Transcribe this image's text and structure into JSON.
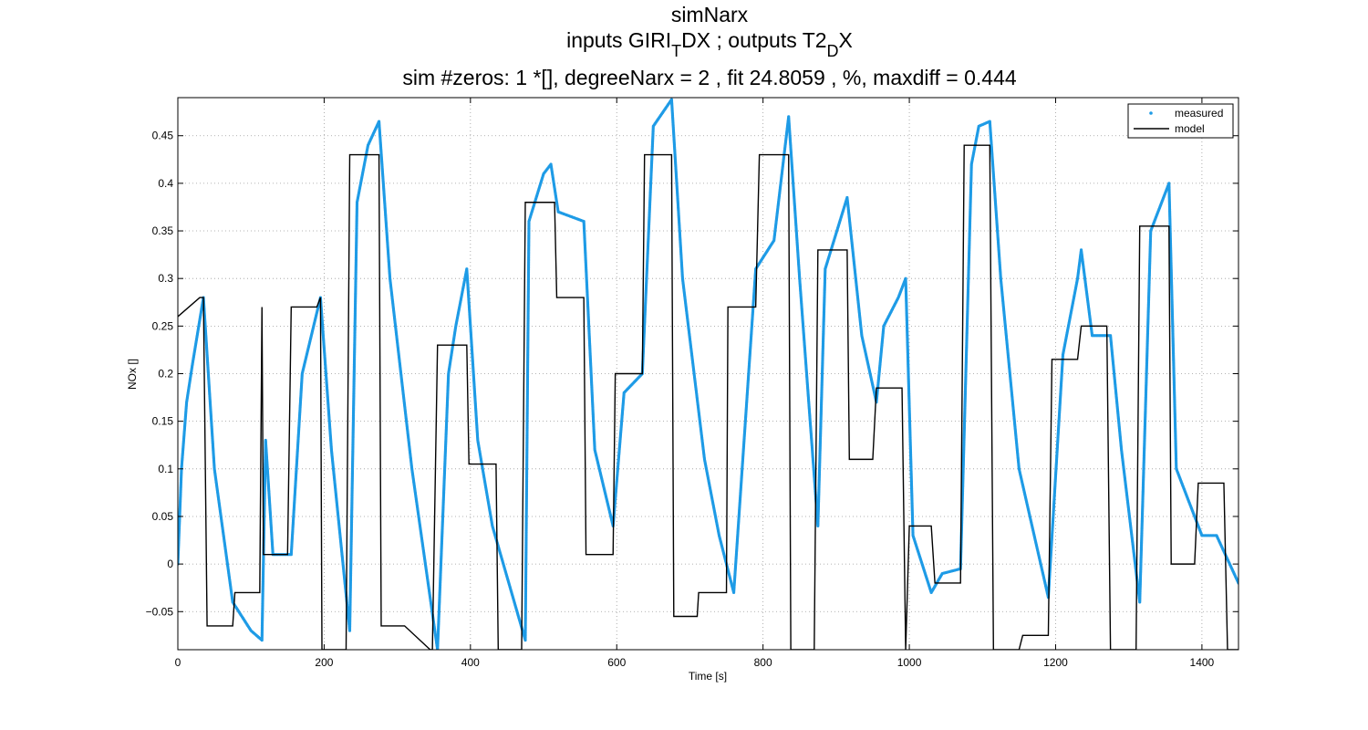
{
  "chart_data": {
    "type": "line",
    "title_lines": [
      "simNarx",
      "inputs GIRI_TDX ; outputs T2_DX",
      "sim #zeros:  1 *[], degreeNarx =  2 , fit  24.8059 , %, maxdiff =  0.444"
    ],
    "title_parts": {
      "line1": "simNarx",
      "line2_a": "inputs GIRI",
      "line2_sub1": "T",
      "line2_b": "DX ; outputs T2",
      "line2_sub2": "D",
      "line2_c": "X",
      "line3": "sim #zeros:  1 *[], degreeNarx =  2 , fit  24.8059 , %, maxdiff =  0.444"
    },
    "xlabel": "Time [s]",
    "ylabel": "NOx  []",
    "xlim": [
      0,
      1450
    ],
    "ylim": [
      -0.09,
      0.49
    ],
    "xticks": [
      "0",
      "200",
      "400",
      "600",
      "800",
      "1000",
      "1200",
      "1400"
    ],
    "xtick_values": [
      0,
      200,
      400,
      600,
      800,
      1000,
      1200,
      1400
    ],
    "yticks": [
      "−0.05",
      "0",
      "0.05",
      "0.1",
      "0.15",
      "0.2",
      "0.25",
      "0.3",
      "0.35",
      "0.4",
      "0.45"
    ],
    "ytick_values": [
      -0.05,
      0,
      0.05,
      0.1,
      0.15,
      0.2,
      0.25,
      0.3,
      0.35,
      0.4,
      0.45
    ],
    "grid": true,
    "legend_position": "top-right",
    "series": [
      {
        "name": "measured",
        "style": "dots",
        "color": "#1e9be6",
        "x": [
          0,
          5,
          12,
          20,
          35,
          50,
          75,
          100,
          115,
          120,
          130,
          155,
          170,
          195,
          210,
          235,
          245,
          260,
          275,
          290,
          320,
          355,
          370,
          380,
          395,
          410,
          430,
          460,
          475,
          480,
          500,
          510,
          520,
          555,
          570,
          595,
          610,
          635,
          650,
          675,
          690,
          720,
          740,
          760,
          790,
          815,
          835,
          850,
          875,
          885,
          905,
          915,
          935,
          955,
          965,
          985,
          995,
          1005,
          1030,
          1045,
          1070,
          1085,
          1095,
          1110,
          1125,
          1150,
          1190,
          1210,
          1230,
          1235,
          1250,
          1275,
          1290,
          1315,
          1330,
          1355,
          1365,
          1400,
          1420,
          1450
        ],
        "y": [
          0.0,
          0.1,
          0.17,
          0.21,
          0.28,
          0.1,
          -0.04,
          -0.07,
          -0.08,
          0.13,
          0.01,
          0.01,
          0.2,
          0.28,
          0.12,
          -0.07,
          0.38,
          0.44,
          0.465,
          0.3,
          0.1,
          -0.09,
          0.2,
          0.25,
          0.31,
          0.13,
          0.04,
          -0.04,
          -0.08,
          0.36,
          0.41,
          0.42,
          0.37,
          0.36,
          0.12,
          0.04,
          0.18,
          0.2,
          0.46,
          0.488,
          0.3,
          0.11,
          0.03,
          -0.03,
          0.31,
          0.34,
          0.47,
          0.3,
          0.04,
          0.31,
          0.36,
          0.385,
          0.24,
          0.17,
          0.25,
          0.28,
          0.3,
          0.03,
          -0.03,
          -0.01,
          -0.005,
          0.42,
          0.46,
          0.465,
          0.3,
          0.1,
          -0.035,
          0.22,
          0.3,
          0.33,
          0.24,
          0.24,
          0.12,
          -0.04,
          0.35,
          0.4,
          0.1,
          0.03,
          0.03,
          -0.02
        ]
      },
      {
        "name": "model",
        "style": "line",
        "color": "#000000",
        "x": [
          0,
          30,
          35,
          40,
          75,
          78,
          112,
          115,
          117,
          120,
          150,
          155,
          190,
          195,
          197,
          230,
          235,
          238,
          275,
          278,
          310,
          345,
          348,
          355,
          358,
          395,
          398,
          435,
          438,
          470,
          475,
          478,
          515,
          518,
          555,
          558,
          595,
          598,
          635,
          638,
          675,
          678,
          710,
          712,
          750,
          752,
          790,
          795,
          830,
          835,
          838,
          870,
          875,
          878,
          915,
          918,
          950,
          955,
          958,
          990,
          995,
          1000,
          1030,
          1035,
          1070,
          1075,
          1080,
          1110,
          1115,
          1150,
          1155,
          1190,
          1195,
          1230,
          1235,
          1240,
          1270,
          1275,
          1278,
          1310,
          1315,
          1318,
          1355,
          1358,
          1390,
          1395,
          1400,
          1430,
          1435,
          1450
        ],
        "y": [
          0.26,
          0.28,
          0.28,
          -0.065,
          -0.065,
          -0.03,
          -0.03,
          0.27,
          0.01,
          0.01,
          0.01,
          0.27,
          0.27,
          0.28,
          -0.09,
          -0.09,
          0.43,
          0.43,
          0.43,
          -0.065,
          -0.065,
          -0.09,
          -0.09,
          0.23,
          0.23,
          0.23,
          0.105,
          0.105,
          -0.09,
          -0.09,
          0.38,
          0.38,
          0.38,
          0.28,
          0.28,
          0.01,
          0.01,
          0.2,
          0.2,
          0.43,
          0.43,
          -0.055,
          -0.055,
          -0.03,
          -0.03,
          0.27,
          0.27,
          0.43,
          0.43,
          0.43,
          -0.09,
          -0.09,
          0.33,
          0.33,
          0.33,
          0.11,
          0.11,
          0.185,
          0.185,
          0.185,
          -0.09,
          0.04,
          0.04,
          -0.02,
          -0.02,
          0.44,
          0.44,
          0.44,
          -0.09,
          -0.09,
          -0.075,
          -0.075,
          0.215,
          0.215,
          0.25,
          0.25,
          0.25,
          -0.09,
          -0.09,
          -0.09,
          0.355,
          0.355,
          0.355,
          0.0,
          0.0,
          0.085,
          0.085,
          0.085,
          -0.09,
          -0.09
        ]
      }
    ]
  }
}
